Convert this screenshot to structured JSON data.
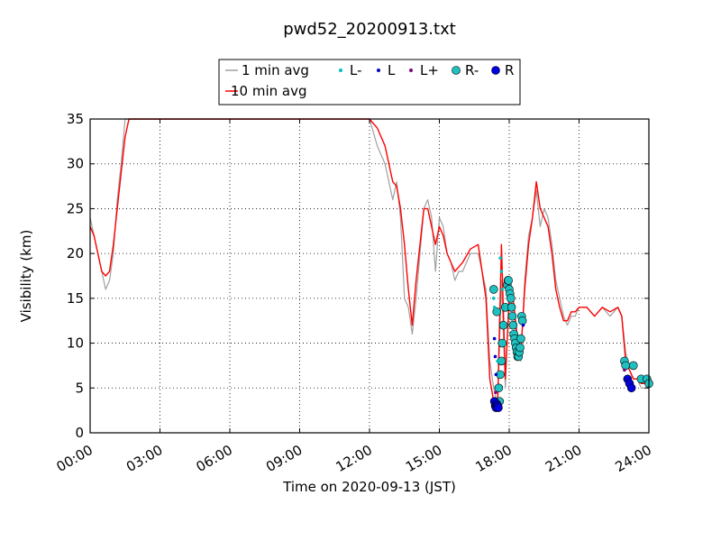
{
  "chart_data": {
    "type": "line",
    "title": "pwd52_20200913.txt",
    "xlabel": "Time on 2020-09-13 (JST)",
    "ylabel": "Visibility (km)",
    "xlim": [
      "00:00",
      "24:00"
    ],
    "ylim": [
      0,
      35
    ],
    "grid": true,
    "legend_placement": "top-center",
    "x_ticks": [
      "00:00",
      "03:00",
      "06:00",
      "09:00",
      "12:00",
      "15:00",
      "18:00",
      "21:00",
      "24:00"
    ],
    "y_ticks": [
      0,
      5,
      10,
      15,
      20,
      25,
      30,
      35
    ],
    "legend": [
      {
        "label": "1 min avg",
        "kind": "line",
        "color": "#a0a0a0"
      },
      {
        "label": "L-",
        "kind": "small-dot",
        "color": "#00bfbf"
      },
      {
        "label": "L",
        "kind": "small-dot",
        "color": "#0000cc"
      },
      {
        "label": "L+",
        "kind": "small-dot",
        "color": "#800080"
      },
      {
        "label": "R-",
        "kind": "circle",
        "color": "#20c0c0"
      },
      {
        "label": "R",
        "kind": "circle",
        "color": "#0000e0"
      },
      {
        "label": "10 min avg",
        "kind": "line",
        "color": "#ff0000"
      }
    ],
    "series": [
      {
        "name": "1 min avg",
        "color": "#a0a0a0",
        "x": [
          "00:00",
          "00:10",
          "00:20",
          "00:30",
          "00:40",
          "00:50",
          "01:00",
          "01:10",
          "01:20",
          "01:30",
          "01:40",
          "01:50",
          "02:00",
          "02:30",
          "03:00",
          "06:00",
          "09:00",
          "11:00",
          "12:00",
          "12:20",
          "12:40",
          "13:00",
          "13:10",
          "13:20",
          "13:30",
          "13:40",
          "13:50",
          "14:00",
          "14:10",
          "14:20",
          "14:30",
          "14:40",
          "14:50",
          "15:00",
          "15:10",
          "15:20",
          "15:30",
          "15:40",
          "15:50",
          "16:00",
          "16:20",
          "16:40",
          "17:00",
          "17:10",
          "17:20",
          "17:30",
          "17:40",
          "17:50",
          "18:00",
          "18:10",
          "18:20",
          "18:30",
          "18:40",
          "18:50",
          "19:00",
          "19:10",
          "19:20",
          "19:30",
          "19:40",
          "19:50",
          "20:00",
          "20:10",
          "20:20",
          "20:30",
          "20:40",
          "20:50",
          "21:00",
          "21:20",
          "21:40",
          "22:00",
          "22:20",
          "22:40",
          "22:50",
          "23:00",
          "23:10",
          "23:20",
          "23:30",
          "23:40",
          "23:50",
          "24:00"
        ],
        "y": [
          24,
          22,
          20,
          18,
          16,
          17,
          20,
          26,
          30,
          35,
          35,
          35,
          35,
          35,
          35,
          35,
          35,
          35,
          35,
          32,
          30,
          26,
          28,
          24,
          15,
          14,
          11,
          15,
          20,
          25,
          26,
          24,
          18,
          24,
          23,
          20,
          19,
          17,
          18,
          18,
          20,
          20,
          16,
          8,
          5,
          3,
          17,
          5,
          16,
          15,
          10,
          8,
          17,
          22,
          24,
          27,
          23,
          25,
          24,
          21,
          17,
          15,
          13,
          12,
          13,
          13,
          14,
          14,
          13,
          14,
          13,
          14,
          13,
          9,
          7,
          6,
          6,
          5,
          5,
          5
        ]
      },
      {
        "name": "10 min avg",
        "color": "#ff0000",
        "x": [
          "00:00",
          "00:10",
          "00:20",
          "00:30",
          "00:40",
          "00:50",
          "01:00",
          "01:10",
          "01:20",
          "01:30",
          "01:40",
          "01:50",
          "02:00",
          "02:30",
          "03:00",
          "06:00",
          "09:00",
          "11:00",
          "12:00",
          "12:20",
          "12:40",
          "13:00",
          "13:10",
          "13:20",
          "13:30",
          "13:40",
          "13:50",
          "14:00",
          "14:10",
          "14:20",
          "14:30",
          "14:40",
          "14:50",
          "15:00",
          "15:10",
          "15:20",
          "15:30",
          "15:40",
          "15:50",
          "16:00",
          "16:20",
          "16:40",
          "17:00",
          "17:10",
          "17:20",
          "17:30",
          "17:40",
          "17:50",
          "18:00",
          "18:10",
          "18:20",
          "18:30",
          "18:40",
          "18:50",
          "19:00",
          "19:10",
          "19:20",
          "19:30",
          "19:40",
          "19:50",
          "20:00",
          "20:10",
          "20:20",
          "20:30",
          "20:40",
          "20:50",
          "21:00",
          "21:20",
          "21:40",
          "22:00",
          "22:20",
          "22:40",
          "22:50",
          "23:00",
          "23:10",
          "23:20",
          "23:30",
          "23:40",
          "23:50",
          "24:00"
        ],
        "y": [
          23,
          22,
          20,
          18,
          17.5,
          18,
          21,
          25,
          29,
          33,
          35,
          35,
          35,
          35,
          35,
          35,
          35,
          35,
          35,
          34,
          32,
          28,
          27.5,
          25,
          21,
          16,
          12,
          17,
          21,
          25,
          25,
          23,
          21,
          23,
          22,
          20,
          19,
          18,
          18.5,
          19,
          20.5,
          21,
          15,
          6,
          3.5,
          3,
          21,
          6,
          15,
          15,
          11,
          9,
          16,
          21,
          24,
          28,
          25,
          24,
          23,
          20,
          16,
          14,
          12.5,
          12.5,
          13.5,
          13.5,
          14,
          14,
          13,
          14,
          13.5,
          14,
          13,
          8,
          7,
          6,
          6,
          5.5,
          5.5,
          5.5
        ]
      }
    ],
    "markers": {
      "L-": {
        "color": "#00bfbf",
        "x": [
          "17:20",
          "17:22",
          "17:30",
          "17:37",
          "17:40",
          "17:42",
          "17:45",
          "17:48"
        ],
        "y": [
          15,
          14,
          8,
          19.5,
          18,
          16,
          14,
          12
        ]
      },
      "L": {
        "color": "#0000cc",
        "x": [
          "17:22",
          "17:24",
          "17:26",
          "18:36",
          "23:00",
          "23:10"
        ],
        "y": [
          10.5,
          8.5,
          6.5,
          12,
          6,
          5.5
        ]
      },
      "L+": {
        "color": "#800080",
        "x": [
          "17:25",
          "22:57"
        ],
        "y": [
          4.5,
          7
        ]
      },
      "R-": {
        "color": "#20c0c0",
        "x": [
          "17:20",
          "17:28",
          "17:33",
          "17:35",
          "17:37",
          "17:40",
          "17:42",
          "17:45",
          "17:50",
          "17:55",
          "17:57",
          "17:58",
          "18:00",
          "18:02",
          "18:04",
          "18:06",
          "18:08",
          "18:10",
          "18:12",
          "18:14",
          "18:16",
          "18:18",
          "18:20",
          "18:22",
          "18:24",
          "18:26",
          "18:28",
          "18:30",
          "18:32",
          "18:34",
          "22:57",
          "23:00",
          "23:20",
          "23:40",
          "23:55",
          "24:00"
        ],
        "y": [
          16,
          13.5,
          5,
          3.5,
          6.5,
          8,
          10,
          12,
          14,
          16.5,
          17,
          17,
          16,
          15.5,
          15,
          14,
          13,
          12,
          11,
          10.5,
          10,
          9.5,
          9,
          8.5,
          8.5,
          9,
          9.5,
          10.5,
          13,
          12.5,
          8,
          7.5,
          7.5,
          6,
          6,
          5.5
        ]
      },
      "R": {
        "color": "#0000e0",
        "x": [
          "17:22",
          "17:24",
          "17:26",
          "17:28",
          "17:30",
          "17:32",
          "23:05",
          "23:10",
          "23:15"
        ],
        "y": [
          3.5,
          3,
          2.8,
          3.2,
          3,
          2.8,
          6,
          5.5,
          5
        ]
      }
    }
  }
}
